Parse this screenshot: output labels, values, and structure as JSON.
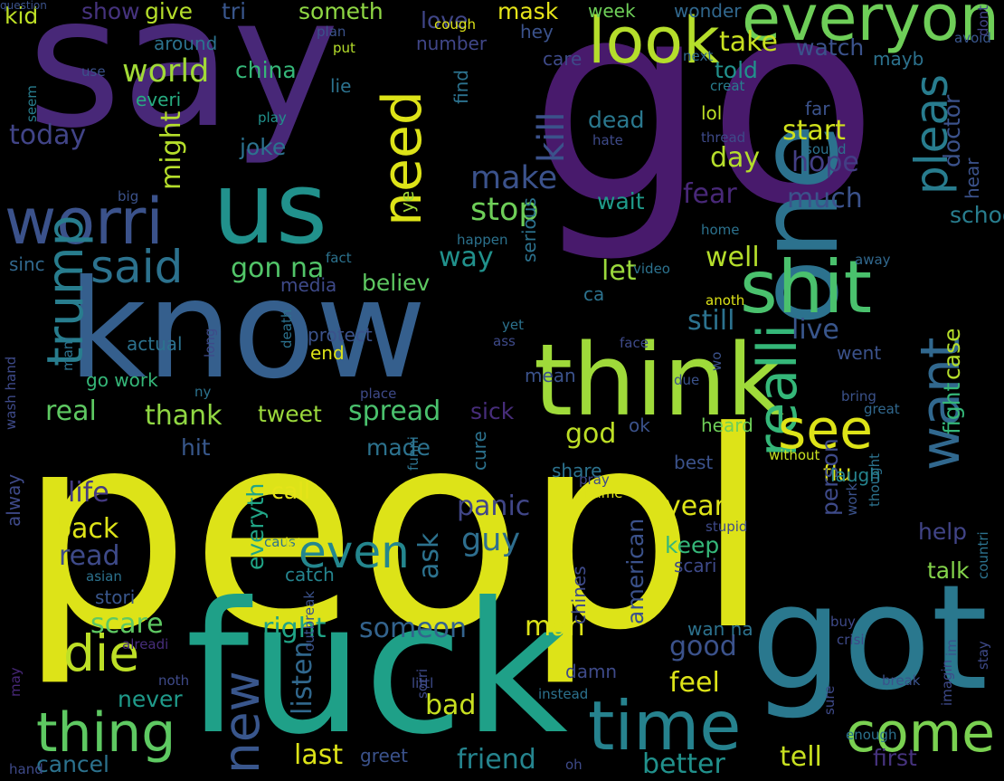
{
  "title": "",
  "words": [
    {
      "text": "peopl",
      "color": "#dde318"
    },
    {
      "text": "say",
      "color": "#482878"
    },
    {
      "text": "go",
      "color": "#481a6c"
    },
    {
      "text": "know",
      "color": "#355f8d"
    },
    {
      "text": "fuck",
      "color": "#1fa088"
    },
    {
      "text": "think",
      "color": "#9fda3a"
    },
    {
      "text": "got",
      "color": "#2a788e"
    },
    {
      "text": "one",
      "color": "#2c728e"
    },
    {
      "text": "us",
      "color": "#21918c"
    },
    {
      "text": "worri",
      "color": "#3b528b"
    },
    {
      "text": "everyon",
      "color": "#6ece58"
    },
    {
      "text": "look",
      "color": "#b5de2b"
    },
    {
      "text": "shit",
      "color": "#4ac16d"
    },
    {
      "text": "time",
      "color": "#26828e"
    },
    {
      "text": "need",
      "color": "#dde318"
    },
    {
      "text": "realli",
      "color": "#35b779"
    },
    {
      "text": "want",
      "color": "#31688e"
    },
    {
      "text": "thing",
      "color": "#5ec962"
    },
    {
      "text": "come",
      "color": "#7ad151"
    },
    {
      "text": "see",
      "color": "#dde318"
    },
    {
      "text": "pleas",
      "color": "#287c8e"
    },
    {
      "text": "said",
      "color": "#2c728e"
    },
    {
      "text": "trump",
      "color": "#287d8e"
    },
    {
      "text": "die",
      "color": "#bddf26"
    },
    {
      "text": "new",
      "color": "#39568c"
    },
    {
      "text": "even",
      "color": "#24868e"
    },
    {
      "text": "kill",
      "color": "#3b528b"
    },
    {
      "text": "world",
      "color": "#a2da37"
    },
    {
      "text": "make",
      "color": "#3b528b"
    },
    {
      "text": "stop",
      "color": "#6ece58"
    },
    {
      "text": "take",
      "color": "#c8e020"
    },
    {
      "text": "gon na",
      "color": "#52c569"
    },
    {
      "text": "thank",
      "color": "#90d743"
    },
    {
      "text": "tweet",
      "color": "#9bd93c"
    },
    {
      "text": "spread",
      "color": "#4ac16d"
    },
    {
      "text": "real",
      "color": "#5ec962"
    },
    {
      "text": "hope",
      "color": "#433e85"
    },
    {
      "text": "start",
      "color": "#d0e11c"
    },
    {
      "text": "god",
      "color": "#bddf26"
    },
    {
      "text": "guy",
      "color": "#2e6e8e"
    },
    {
      "text": "panic",
      "color": "#404688"
    },
    {
      "text": "life",
      "color": "#443a83"
    },
    {
      "text": "back",
      "color": "#dde318"
    },
    {
      "text": "read",
      "color": "#3e4a89"
    },
    {
      "text": "listen",
      "color": "#31688e"
    },
    {
      "text": "last",
      "color": "#dde318"
    },
    {
      "text": "friend",
      "color": "#25848e"
    },
    {
      "text": "cancel",
      "color": "#2c728e"
    },
    {
      "text": "better",
      "color": "#21918c"
    },
    {
      "text": "tell",
      "color": "#c8e020"
    },
    {
      "text": "first",
      "color": "#46337e"
    },
    {
      "text": "bad",
      "color": "#c8e020"
    },
    {
      "text": "feel",
      "color": "#dde318"
    },
    {
      "text": "good",
      "color": "#3b528b"
    },
    {
      "text": "man",
      "color": "#dde318"
    },
    {
      "text": "right",
      "color": "#20a386"
    },
    {
      "text": "someon",
      "color": "#33638d"
    },
    {
      "text": "scare",
      "color": "#5ec962"
    },
    {
      "text": "never",
      "color": "#1f9a8a"
    },
    {
      "text": "everyth",
      "color": "#20a486"
    },
    {
      "text": "ask",
      "color": "#2c728e"
    },
    {
      "text": "american",
      "color": "#3b528b"
    },
    {
      "text": "year",
      "color": "#dde318"
    },
    {
      "text": "keep",
      "color": "#35b779"
    },
    {
      "text": "talk",
      "color": "#84d44b"
    },
    {
      "text": "help",
      "color": "#414487"
    },
    {
      "text": "fight",
      "color": "#35b779"
    },
    {
      "text": "flu",
      "color": "#dde318"
    },
    {
      "text": "day",
      "color": "#b5de2b"
    },
    {
      "text": "much",
      "color": "#3b528b"
    },
    {
      "text": "way",
      "color": "#21918c"
    },
    {
      "text": "believ",
      "color": "#5ec962"
    },
    {
      "text": "let",
      "color": "#9bd93c"
    },
    {
      "text": "live",
      "color": "#39568c"
    },
    {
      "text": "still",
      "color": "#2c728e"
    },
    {
      "text": "well",
      "color": "#b5de2b"
    },
    {
      "text": "made",
      "color": "#2c728e"
    },
    {
      "text": "sick",
      "color": "#472d7b"
    },
    {
      "text": "hit",
      "color": "#38588c"
    },
    {
      "text": "call",
      "color": "#e5e419"
    },
    {
      "text": "fear",
      "color": "#482878"
    },
    {
      "text": "wait",
      "color": "#1f9a8a"
    },
    {
      "text": "might",
      "color": "#b5de2b"
    },
    {
      "text": "today",
      "color": "#414487"
    },
    {
      "text": "love",
      "color": "#404688"
    },
    {
      "text": "someth",
      "color": "#8fd744"
    },
    {
      "text": "give",
      "color": "#b5de2b"
    },
    {
      "text": "tri",
      "color": "#39568c"
    },
    {
      "text": "show",
      "color": "#46337e"
    },
    {
      "text": "kid",
      "color": "#bddf26"
    },
    {
      "text": "mask",
      "color": "#e5e419"
    },
    {
      "text": "watch",
      "color": "#3b528b"
    },
    {
      "text": "lol",
      "color": "#bddf26"
    },
    {
      "text": "dead",
      "color": "#2a788e"
    },
    {
      "text": "doctor",
      "color": "#3b528b"
    },
    {
      "text": "case",
      "color": "#b5de2b"
    },
    {
      "text": "person",
      "color": "#3e4a89"
    },
    {
      "text": "laugh",
      "color": "#25848e"
    },
    {
      "text": "told",
      "color": "#21918c"
    },
    {
      "text": "hear",
      "color": "#3b528b"
    },
    {
      "text": "school",
      "color": "#287d8e"
    },
    {
      "text": "ye",
      "color": "#a2da37"
    },
    {
      "text": "serious",
      "color": "#2c728e"
    },
    {
      "text": "media",
      "color": "#3e4a89"
    },
    {
      "text": "stori",
      "color": "#39568c"
    },
    {
      "text": "catch",
      "color": "#25848e"
    },
    {
      "text": "everi",
      "color": "#27ad81"
    },
    {
      "text": "china",
      "color": "#35b779"
    },
    {
      "text": "joke",
      "color": "#2c728e"
    },
    {
      "text": "lie",
      "color": "#2c728e"
    },
    {
      "text": "find",
      "color": "#2c728e"
    },
    {
      "text": "week",
      "color": "#6ece58"
    },
    {
      "text": "wonder",
      "color": "#31688e"
    },
    {
      "text": "around",
      "color": "#2c728e"
    },
    {
      "text": "care",
      "color": "#3e4a89"
    },
    {
      "text": "put",
      "color": "#b5de2b"
    },
    {
      "text": "plan",
      "color": "#3b528b"
    },
    {
      "text": "hey",
      "color": "#3b528b"
    },
    {
      "text": "cough",
      "color": "#dde318"
    },
    {
      "text": "number",
      "color": "#404688"
    },
    {
      "text": "mayb",
      "color": "#2c728e"
    },
    {
      "text": "next",
      "color": "#31688e"
    },
    {
      "text": "creat",
      "color": "#287d8e"
    },
    {
      "text": "avoid",
      "color": "#39568c"
    },
    {
      "text": "dont",
      "color": "#414487"
    },
    {
      "text": "far",
      "color": "#3b528b"
    },
    {
      "text": "sound",
      "color": "#2c728e"
    },
    {
      "text": "thread",
      "color": "#3e4a89"
    },
    {
      "text": "hate",
      "color": "#3e4a89"
    },
    {
      "text": "play",
      "color": "#21918c"
    },
    {
      "text": "use",
      "color": "#3b528b"
    },
    {
      "text": "seem",
      "color": "#287d8e"
    },
    {
      "text": "happen",
      "color": "#2c728e"
    },
    {
      "text": "home",
      "color": "#2c728e"
    },
    {
      "text": "fact",
      "color": "#2c728e"
    },
    {
      "text": "big",
      "color": "#3b528b"
    },
    {
      "text": "sinc",
      "color": "#31688e"
    },
    {
      "text": "video",
      "color": "#2c728e"
    },
    {
      "text": "ca",
      "color": "#2c728e"
    },
    {
      "text": "anoth",
      "color": "#dde318"
    },
    {
      "text": "away",
      "color": "#31688e"
    },
    {
      "text": "death",
      "color": "#2c728e"
    },
    {
      "text": "protect",
      "color": "#3b528b"
    },
    {
      "text": "end",
      "color": "#dde318"
    },
    {
      "text": "yet",
      "color": "#2c728e"
    },
    {
      "text": "ass",
      "color": "#3e4a89"
    },
    {
      "text": "face",
      "color": "#3e4a89"
    },
    {
      "text": "went",
      "color": "#3b528b"
    },
    {
      "text": "actual",
      "color": "#2c728e"
    },
    {
      "text": "long",
      "color": "#3e4a89"
    },
    {
      "text": "mani",
      "color": "#2c728e"
    },
    {
      "text": "go work",
      "color": "#35b779"
    },
    {
      "text": "ny",
      "color": "#2c728e"
    },
    {
      "text": "place",
      "color": "#3e4a89"
    },
    {
      "text": "mean",
      "color": "#3b528b"
    },
    {
      "text": "due",
      "color": "#3b528b"
    },
    {
      "text": "wo",
      "color": "#3b528b"
    },
    {
      "text": "bring",
      "color": "#3b528b"
    },
    {
      "text": "great",
      "color": "#31688e"
    },
    {
      "text": "ok",
      "color": "#3b528b"
    },
    {
      "text": "heard",
      "color": "#6ece58"
    },
    {
      "text": "without",
      "color": "#c8e020"
    },
    {
      "text": "best",
      "color": "#3b528b"
    },
    {
      "text": "share",
      "color": "#2c728e"
    },
    {
      "text": "pray",
      "color": "#3e4a89"
    },
    {
      "text": "name",
      "color": "#dde318"
    },
    {
      "text": "cure",
      "color": "#2c728e"
    },
    {
      "text": "funni",
      "color": "#2c728e"
    },
    {
      "text": "stupid",
      "color": "#3e4a89"
    },
    {
      "text": "scari",
      "color": "#3e4a89"
    },
    {
      "text": "work",
      "color": "#3b528b"
    },
    {
      "text": "thought",
      "color": "#2c728e"
    },
    {
      "text": "countri",
      "color": "#2c728e"
    },
    {
      "text": "buy",
      "color": "#3e4a89"
    },
    {
      "text": "crisi",
      "color": "#3e4a89"
    },
    {
      "text": "wan na",
      "color": "#2c728e"
    },
    {
      "text": "chines",
      "color": "#3e4a89"
    },
    {
      "text": "alreadi",
      "color": "#472d7b"
    },
    {
      "text": "noth",
      "color": "#3e4a89"
    },
    {
      "text": "littl",
      "color": "#3e4a89"
    },
    {
      "text": "instead",
      "color": "#2c728e"
    },
    {
      "text": "break",
      "color": "#3b528b"
    },
    {
      "text": "im",
      "color": "#3b528b"
    },
    {
      "text": "stay",
      "color": "#3e4a89"
    },
    {
      "text": "sure",
      "color": "#3e4a89"
    },
    {
      "text": "imagin",
      "color": "#3e4a89"
    },
    {
      "text": "enough",
      "color": "#2c728e"
    },
    {
      "text": "oh",
      "color": "#3e4a89"
    },
    {
      "text": "sorri",
      "color": "#3e4a89"
    },
    {
      "text": "outbreak",
      "color": "#3b528b"
    },
    {
      "text": "greet",
      "color": "#3b528b"
    },
    {
      "text": "caus",
      "color": "#2c728e"
    },
    {
      "text": "lot",
      "color": "#dde318"
    },
    {
      "text": "asian",
      "color": "#2c728e"
    },
    {
      "text": "damn",
      "color": "#3e4a89"
    },
    {
      "text": "may",
      "color": "#482878"
    },
    {
      "text": "hand",
      "color": "#3e4a89"
    },
    {
      "text": "alway",
      "color": "#3e4a89"
    },
    {
      "text": "wash hand",
      "color": "#3e4a89"
    },
    {
      "text": "question",
      "color": "#3b528b"
    }
  ]
}
